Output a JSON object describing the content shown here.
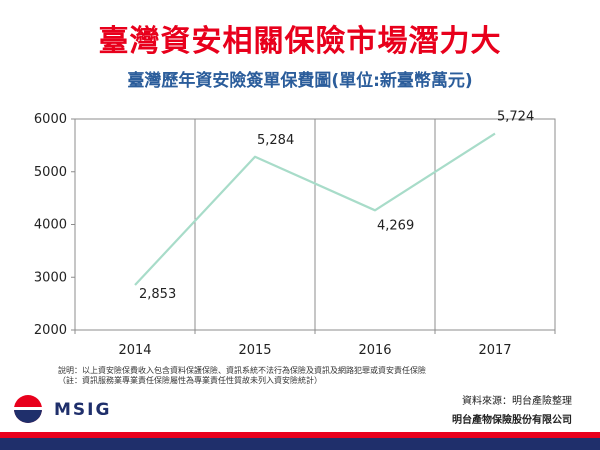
{
  "header": {
    "title": "臺灣資安相關保險市場潛力大",
    "subtitle": "臺灣歷年資安險簽單保費圖(單位:新臺幣萬元)"
  },
  "chart_data": {
    "type": "line",
    "categories": [
      "2014",
      "2015",
      "2016",
      "2017"
    ],
    "values": [
      2853,
      5284,
      4269,
      5724
    ],
    "data_labels": [
      "2,853",
      "5,284",
      "4,269",
      "5,724"
    ],
    "ylim": [
      2000,
      6000
    ],
    "yticks": [
      "2000",
      "3000",
      "4000",
      "5000",
      "6000"
    ],
    "grid": "vertical",
    "line_color": "#a8dcc9",
    "legend": ""
  },
  "notes": {
    "line1": "說明：以上資安險保費收入包含資料保護保險、資訊系統不法行為保險及資訊及網路犯罪或資安責任保險",
    "line2": "（註：資訊服務業專業責任保險屬性為專業責任性質故未列入資安險統計）"
  },
  "footer": {
    "source": "資料來源：明台產險整理",
    "company": "明台產物保險股份有限公司",
    "logo_text": "MSIG"
  },
  "colors": {
    "title": "#e8001c",
    "subtitle": "#2b5d9b",
    "brand_red": "#e8001c",
    "brand_navy": "#1f2f6b"
  }
}
